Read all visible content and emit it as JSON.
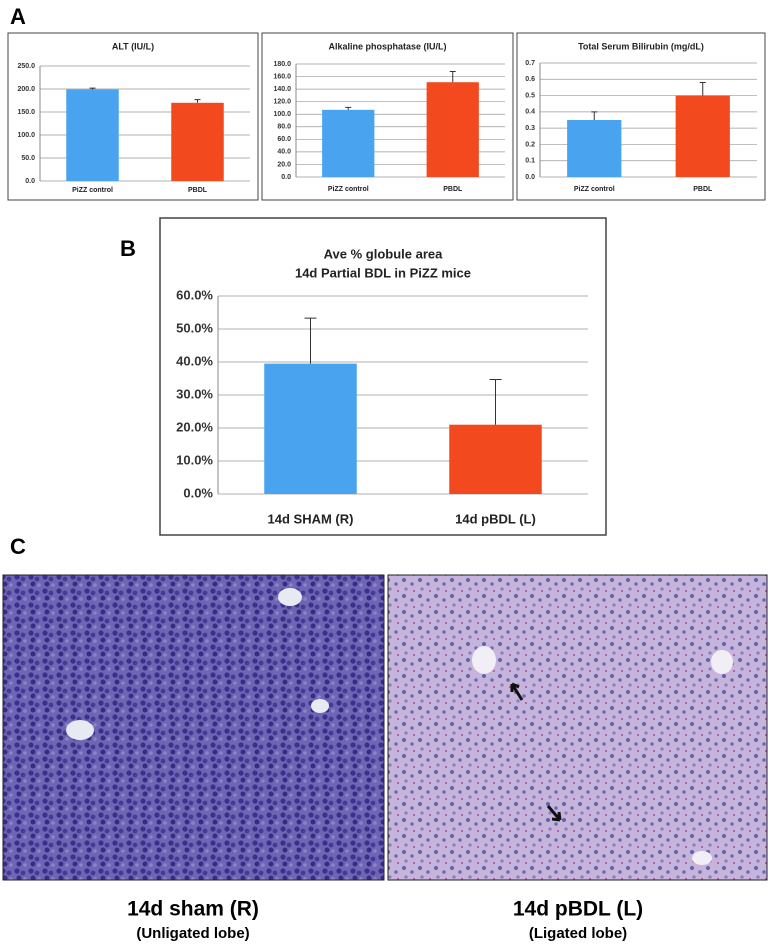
{
  "panel_labels": [
    "A",
    "B",
    "C"
  ],
  "chart_data": [
    {
      "type": "bar",
      "title": "ALT (IU/L)",
      "categories": [
        "PiZZ control",
        "PBDL"
      ],
      "values": [
        199,
        170
      ],
      "errors": [
        3,
        7
      ],
      "colors": [
        "#4aa3ee",
        "#f24a1e"
      ],
      "ylim": [
        0,
        250
      ],
      "yticks": [
        {
          "value": 0,
          "label": "0.0"
        },
        {
          "value": 50,
          "label": "50.0"
        },
        {
          "value": 100,
          "label": "100.0"
        },
        {
          "value": 150,
          "label": "150.0"
        },
        {
          "value": 200,
          "label": "200.0"
        },
        {
          "value": 250,
          "label": "250.0"
        }
      ],
      "grid": true
    },
    {
      "type": "bar",
      "title": "Alkaline phosphatase (IU/L)",
      "categories": [
        "PiZZ control",
        "PBDL"
      ],
      "values": [
        107,
        151
      ],
      "errors": [
        4,
        17
      ],
      "colors": [
        "#4aa3ee",
        "#f24a1e"
      ],
      "ylim": [
        0,
        180
      ],
      "yticks": [
        {
          "value": 0,
          "label": "0.0"
        },
        {
          "value": 20,
          "label": "20.0"
        },
        {
          "value": 40,
          "label": "40.0"
        },
        {
          "value": 60,
          "label": "60.0"
        },
        {
          "value": 80,
          "label": "80.0"
        },
        {
          "value": 100,
          "label": "100.0"
        },
        {
          "value": 120,
          "label": "120.0"
        },
        {
          "value": 140,
          "label": "140.0"
        },
        {
          "value": 160,
          "label": "160.0"
        },
        {
          "value": 180,
          "label": "180.0"
        }
      ],
      "grid": true
    },
    {
      "type": "bar",
      "title": "Total Serum Bilirubin (mg/dL)",
      "categories": [
        "PiZZ control",
        "PBDL"
      ],
      "values": [
        0.35,
        0.5
      ],
      "errors": [
        0.05,
        0.08
      ],
      "colors": [
        "#4aa3ee",
        "#f24a1e"
      ],
      "ylim": [
        0,
        0.7
      ],
      "yticks": [
        {
          "value": 0,
          "label": "0.0"
        },
        0.1,
        0.2,
        0.3,
        0.4,
        0.5,
        0.6,
        0.7
      ],
      "grid": true
    },
    {
      "type": "bar",
      "title": [
        "Ave % globule area",
        "14d Partial BDL in PiZZ mice"
      ],
      "categories": [
        "14d SHAM (R)",
        "14d pBDL (L)"
      ],
      "values": [
        39.5,
        21
      ],
      "errors": [
        13.8,
        13.7
      ],
      "colors": [
        "#4aa3ee",
        "#f24a1e"
      ],
      "ylim": [
        0,
        60
      ],
      "yticks": [
        {
          "value": 0,
          "label": "0.0%"
        },
        {
          "value": 10,
          "label": "10.0%"
        },
        {
          "value": 20,
          "label": "20.0%"
        },
        {
          "value": 30,
          "label": "30.0%"
        },
        {
          "value": 40,
          "label": "40.0%"
        },
        {
          "value": 50,
          "label": "50.0%"
        },
        {
          "value": 60,
          "label": "60.0%"
        }
      ],
      "grid": true
    }
  ],
  "images": [
    {
      "caption": "14d sham (R)",
      "subcaption": "(Unligated lobe)"
    },
    {
      "caption": "14d pBDL (L)",
      "subcaption": "(Ligated lobe)"
    }
  ]
}
